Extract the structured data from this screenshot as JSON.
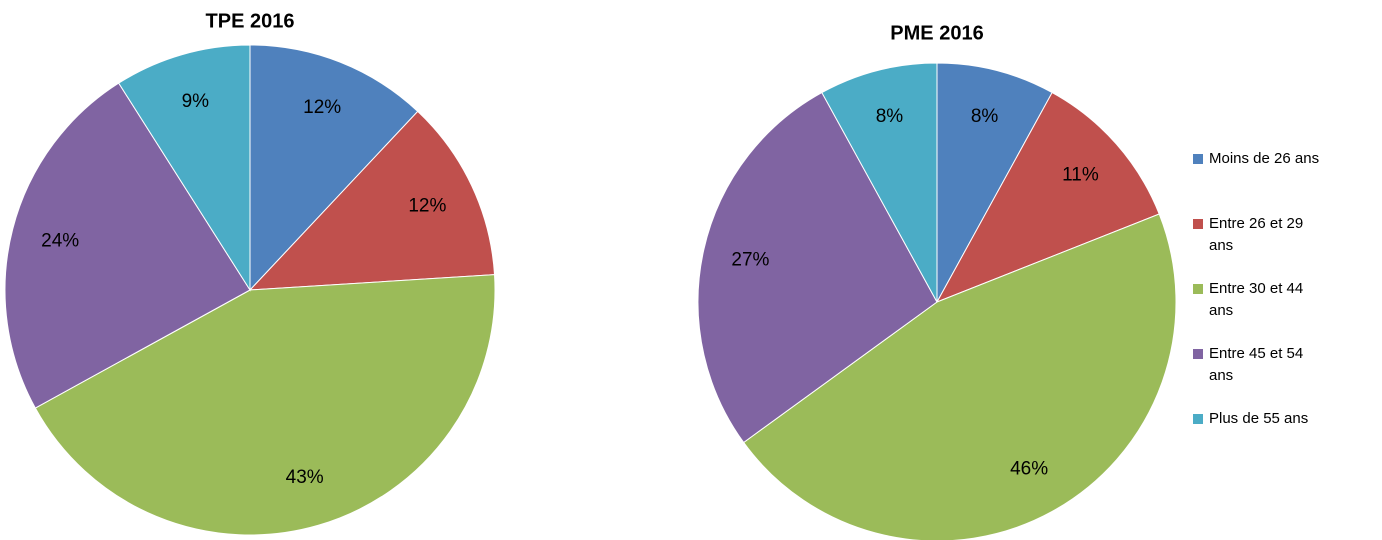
{
  "chart_data": [
    {
      "type": "pie",
      "title": "TPE 2016",
      "categories": [
        "Moins de 26 ans",
        "Entre 26 et 29 ans",
        "Entre 30 et 44 ans",
        "Entre 45 et 54 ans",
        "Plus de 55 ans"
      ],
      "values": [
        12,
        12,
        43,
        24,
        9
      ],
      "value_labels": [
        "12%",
        "12%",
        "43%",
        "24%",
        "9%"
      ],
      "colors": [
        "#4f81bd",
        "#c0504d",
        "#9bbb59",
        "#8064a2",
        "#4bacc6"
      ]
    },
    {
      "type": "pie",
      "title": "PME 2016",
      "categories": [
        "Moins de 26 ans",
        "Entre 26 et 29 ans",
        "Entre 30 et 44 ans",
        "Entre 45 et 54 ans",
        "Plus de 55 ans"
      ],
      "values": [
        8,
        11,
        46,
        27,
        8
      ],
      "value_labels": [
        "8%",
        "11%",
        "46%",
        "27%",
        "8%"
      ],
      "colors": [
        "#4f81bd",
        "#c0504d",
        "#9bbb59",
        "#8064a2",
        "#4bacc6"
      ],
      "legend": "right"
    }
  ]
}
